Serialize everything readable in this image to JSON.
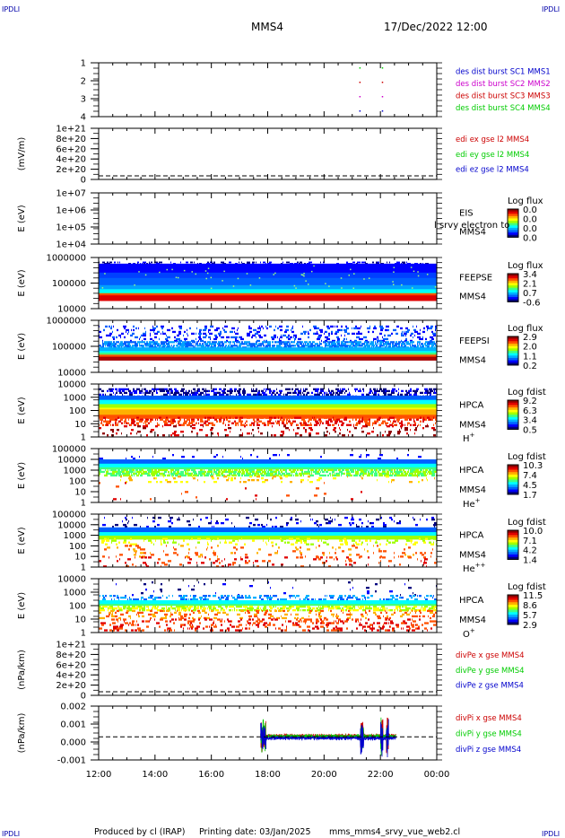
{
  "corner_label": "IPDLI",
  "header": {
    "spacecraft": "MMS4",
    "datetime": "17/Dec/2022 12:00"
  },
  "footer": {
    "produced_by": "Produced by cl (IRAP)",
    "printing_date": "Printing date: 03/Jan/2025",
    "filename": "mms_mms4_srvy_vue_web2.cl"
  },
  "colors": {
    "blue": "#0000cc",
    "magenta": "#cc00cc",
    "red": "#cc0000",
    "green": "#00cc00",
    "dark_red": "#aa0000"
  },
  "chart_data": [
    {
      "type": "line",
      "time_ticks": [
        "12:00",
        "14:00",
        "16:00",
        "18:00",
        "20:00",
        "22:00",
        "00:00"
      ],
      "yticks": [
        "1",
        "2",
        "3",
        "4"
      ],
      "ylabel": "",
      "legend": [
        {
          "text": "des dist burst SC1 MMS1",
          "color": "#0000cc"
        },
        {
          "text": "des dist burst SC2 MMS2",
          "color": "#cc00cc"
        },
        {
          "text": "des dist burst SC3 MMS3",
          "color": "#cc0000"
        },
        {
          "text": "des dist burst SC4 MMS4",
          "color": "#00cc00"
        }
      ],
      "markers": [
        {
          "time": 21.25,
          "y": 4,
          "color": "#00cc00"
        },
        {
          "time": 22.05,
          "y": 4,
          "color": "#00cc00"
        },
        {
          "time": 21.25,
          "y": 3,
          "color": "#cc0000"
        },
        {
          "time": 22.05,
          "y": 3,
          "color": "#cc0000"
        },
        {
          "time": 21.25,
          "y": 2,
          "color": "#cc00cc"
        },
        {
          "time": 22.05,
          "y": 2,
          "color": "#cc00cc"
        },
        {
          "time": 21.25,
          "y": 1,
          "color": "#0000cc"
        },
        {
          "time": 22.05,
          "y": 1,
          "color": "#0000cc"
        }
      ]
    },
    {
      "type": "line",
      "ylabel": "(mV/m)",
      "yticks": [
        "1e+21",
        "8e+20",
        "6e+20",
        "4e+20",
        "2e+20",
        "0"
      ],
      "legend": [
        {
          "text": "edi ex gse l2 MMS4",
          "color": "#cc0000"
        },
        {
          "text": "edi ey gse l2 MMS4",
          "color": "#00cc00"
        },
        {
          "text": "edi ez gse l2 MMS4",
          "color": "#0000cc"
        }
      ]
    },
    {
      "type": "heatmap",
      "ylabel": "E (eV)",
      "yticks": [
        "1e+07",
        "1e+06",
        "1e+05",
        "1e+04"
      ],
      "instrument": "EIS",
      "sc": "MMS4",
      "overlay_text": "l srvy electron to",
      "colorbar_title": "Log flux",
      "colorbar_ticks": [
        "0.0",
        "0.0",
        "0.0",
        "0.0"
      ]
    },
    {
      "type": "heatmap",
      "ylabel": "E (eV)",
      "yticks": [
        "1000000",
        "100000",
        "10000"
      ],
      "instrument": "FEEPSE",
      "sc": "MMS4",
      "colorbar_title": "Log flux",
      "colorbar_ticks": [
        "3.4",
        "2.1",
        "0.7",
        "-0.6"
      ]
    },
    {
      "type": "heatmap",
      "ylabel": "E (eV)",
      "yticks": [
        "1000000",
        "100000",
        "10000"
      ],
      "instrument": "FEEPSI",
      "sc": "MMS4",
      "colorbar_title": "Log flux",
      "colorbar_ticks": [
        "2.9",
        "2.0",
        "1.1",
        "0.2"
      ]
    },
    {
      "type": "heatmap",
      "ylabel": "E (eV)",
      "yticks": [
        "10000",
        "1000",
        "100",
        "10",
        "1"
      ],
      "instrument": "HPCA",
      "sc": "MMS4",
      "species": "H",
      "species_sup": "+",
      "colorbar_title": "Log fdist",
      "colorbar_ticks": [
        "9.2",
        "6.3",
        "3.4",
        "0.5"
      ]
    },
    {
      "type": "heatmap",
      "ylabel": "E (eV)",
      "yticks": [
        "100000",
        "10000",
        "1000",
        "100",
        "10",
        "1"
      ],
      "instrument": "HPCA",
      "sc": "MMS4",
      "species": "He",
      "species_sup": "+",
      "colorbar_title": "Log fdist",
      "colorbar_ticks": [
        "10.3",
        "7.4",
        "4.5",
        "1.7"
      ]
    },
    {
      "type": "heatmap",
      "ylabel": "E (eV)",
      "yticks": [
        "100000",
        "10000",
        "1000",
        "100",
        "10",
        "1"
      ],
      "instrument": "HPCA",
      "sc": "MMS4",
      "species": "He",
      "species_sup": "++",
      "colorbar_title": "Log fdist",
      "colorbar_ticks": [
        "10.0",
        "7.1",
        "4.2",
        "1.4"
      ]
    },
    {
      "type": "heatmap",
      "ylabel": "E (eV)",
      "yticks": [
        "10000",
        "1000",
        "100",
        "10",
        "1"
      ],
      "instrument": "HPCA",
      "sc": "MMS4",
      "species": "O",
      "species_sup": "+",
      "colorbar_title": "Log fdist",
      "colorbar_ticks": [
        "11.5",
        "8.6",
        "5.7",
        "2.9"
      ]
    },
    {
      "type": "line",
      "ylabel": "(nPa/km)",
      "yticks": [
        "1e+21",
        "8e+20",
        "6e+20",
        "4e+20",
        "2e+20",
        "0"
      ],
      "legend": [
        {
          "text": "divPe x gse MMS4",
          "color": "#cc0000"
        },
        {
          "text": "divPe y gse MMS4",
          "color": "#00cc00"
        },
        {
          "text": "divPe z gse MMS4",
          "color": "#0000cc"
        }
      ]
    },
    {
      "type": "line",
      "ylabel": "(nPa/km)",
      "yticks": [
        "0.002",
        "0.001",
        "0.000",
        "-0.001"
      ],
      "ylim": [
        -0.0015,
        0.002
      ],
      "legend": [
        {
          "text": "divPi x gse MMS4",
          "color": "#cc0000"
        },
        {
          "text": "divPi y gse MMS4",
          "color": "#00cc00"
        },
        {
          "text": "divPi z gse MMS4",
          "color": "#0000cc"
        }
      ],
      "data_span": [
        17.75,
        22.55
      ]
    }
  ]
}
